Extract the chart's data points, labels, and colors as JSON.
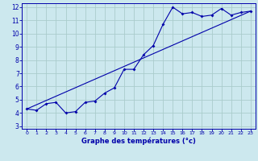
{
  "xlabel": "Graphe des températures (°c)",
  "bg_color": "#cce8ee",
  "grid_color": "#aacccc",
  "line_color": "#0000aa",
  "xlim": [
    -0.5,
    23.5
  ],
  "ylim": [
    2.8,
    12.3
  ],
  "xticks": [
    0,
    1,
    2,
    3,
    4,
    5,
    6,
    7,
    8,
    9,
    10,
    11,
    12,
    13,
    14,
    15,
    16,
    17,
    18,
    19,
    20,
    21,
    22,
    23
  ],
  "yticks": [
    3,
    4,
    5,
    6,
    7,
    8,
    9,
    10,
    11,
    12
  ],
  "curve_x": [
    0,
    1,
    2,
    3,
    4,
    5,
    6,
    7,
    8,
    9,
    10,
    11,
    12,
    13,
    14,
    15,
    16,
    17,
    18,
    19,
    20,
    21,
    22,
    23
  ],
  "curve_y": [
    4.3,
    4.2,
    4.7,
    4.8,
    4.0,
    4.1,
    4.8,
    4.9,
    5.5,
    5.9,
    7.3,
    7.3,
    8.4,
    9.1,
    10.7,
    12.0,
    11.5,
    11.6,
    11.3,
    11.4,
    11.9,
    11.4,
    11.6,
    11.7
  ],
  "trend_x": [
    0,
    23
  ],
  "trend_y": [
    4.3,
    11.7
  ]
}
